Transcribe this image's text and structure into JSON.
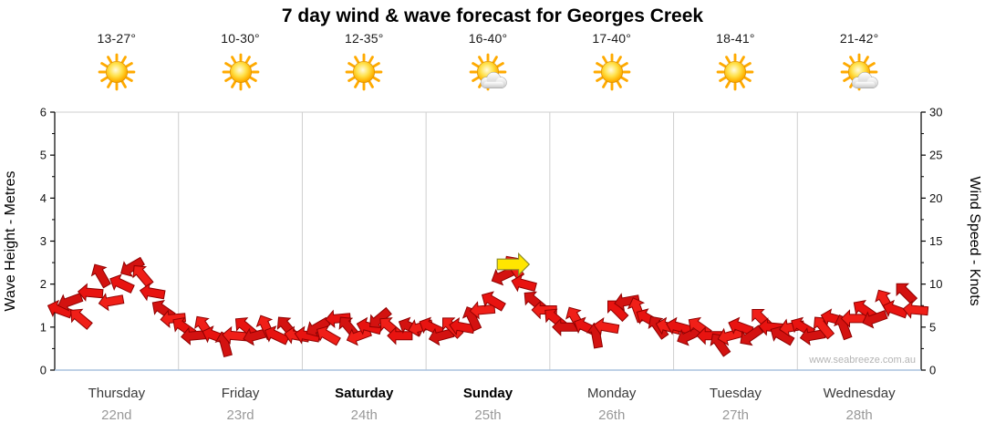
{
  "title": "7 day wind & wave forecast for Georges Creek",
  "watermark": "www.seabreeze.com.au",
  "days": [
    {
      "name": "Thursday",
      "date": "22nd",
      "temp": "13-27°",
      "icon": "sun",
      "bold": false
    },
    {
      "name": "Friday",
      "date": "23rd",
      "temp": "10-30°",
      "icon": "sun",
      "bold": false
    },
    {
      "name": "Saturday",
      "date": "24th",
      "temp": "12-35°",
      "icon": "sun",
      "bold": true
    },
    {
      "name": "Sunday",
      "date": "25th",
      "temp": "16-40°",
      "icon": "sun-cloud",
      "bold": true
    },
    {
      "name": "Monday",
      "date": "26th",
      "temp": "17-40°",
      "icon": "sun",
      "bold": false
    },
    {
      "name": "Tuesday",
      "date": "27th",
      "temp": "18-41°",
      "icon": "sun",
      "bold": false
    },
    {
      "name": "Wednesday",
      "date": "28th",
      "temp": "21-42°",
      "icon": "sun-cloud",
      "bold": false
    }
  ],
  "chart_data": {
    "type": "scatter",
    "style": "wind-arrow-forecast",
    "title": "7 day wind & wave forecast for Georges Creek",
    "wave_axis": {
      "label": "Wave Height - Metres",
      "range": [
        0,
        6
      ],
      "ticks": [
        0,
        1,
        2,
        3,
        4,
        5,
        6
      ]
    },
    "wind_axis": {
      "label": "Wind Speed - Knots",
      "range": [
        0,
        30
      ],
      "ticks": [
        0,
        5,
        10,
        15,
        20,
        25,
        30
      ]
    },
    "categories": [
      "Thursday",
      "Friday",
      "Saturday",
      "Sunday",
      "Monday",
      "Tuesday",
      "Wednesday"
    ],
    "samples_per_day": 12,
    "wind_knots": [
      7,
      8,
      6,
      9,
      11,
      8,
      10,
      12,
      11,
      9,
      7,
      6,
      5,
      4,
      5,
      4,
      3,
      4,
      5,
      4,
      5,
      4,
      5,
      4,
      4,
      5,
      4,
      6,
      5,
      4,
      5,
      6,
      5,
      4,
      5,
      5,
      5,
      4,
      5,
      5,
      6,
      7,
      8,
      11,
      12,
      10,
      8,
      7,
      6,
      5,
      6,
      5,
      4,
      5,
      7,
      8,
      7,
      6,
      5,
      5,
      5,
      4,
      5,
      4,
      3,
      4,
      5,
      4,
      6,
      5,
      4,
      5,
      5,
      4,
      5,
      6,
      5,
      6,
      7,
      6,
      8,
      7,
      9,
      7
    ],
    "wind_dir_deg": [
      200,
      160,
      220,
      185,
      240,
      170,
      205,
      150,
      230,
      190,
      215,
      175,
      215,
      175,
      235,
      200,
      255,
      185,
      220,
      165,
      245,
      205,
      230,
      190,
      190,
      150,
      210,
      175,
      230,
      160,
      195,
      140,
      220,
      180,
      205,
      165,
      205,
      165,
      225,
      190,
      245,
      175,
      210,
      155,
      235,
      195,
      220,
      180,
      220,
      180,
      240,
      205,
      260,
      190,
      225,
      170,
      250,
      210,
      235,
      195,
      195,
      155,
      215,
      180,
      235,
      165,
      200,
      145,
      225,
      185,
      210,
      170,
      210,
      170,
      230,
      195,
      250,
      180,
      215,
      160,
      240,
      200,
      225,
      185
    ],
    "highlight_arrow": {
      "day_fraction": 3.7,
      "knots": 12.3,
      "dir_deg": 0,
      "color": "#ffe600",
      "stroke": "#8a8a2a"
    },
    "arrow_fills": [
      "#e81310",
      "#d31210",
      "#f01f18"
    ],
    "arrow_stroke": "#8f0000",
    "grid_color": "#cfcfcf",
    "axis_color": "#000000",
    "baseline_color": "#a9c2de",
    "day_label_color": "#3a3a3a",
    "date_label_color": "#999999",
    "legend_position": "none",
    "grid": "vertical-only"
  }
}
